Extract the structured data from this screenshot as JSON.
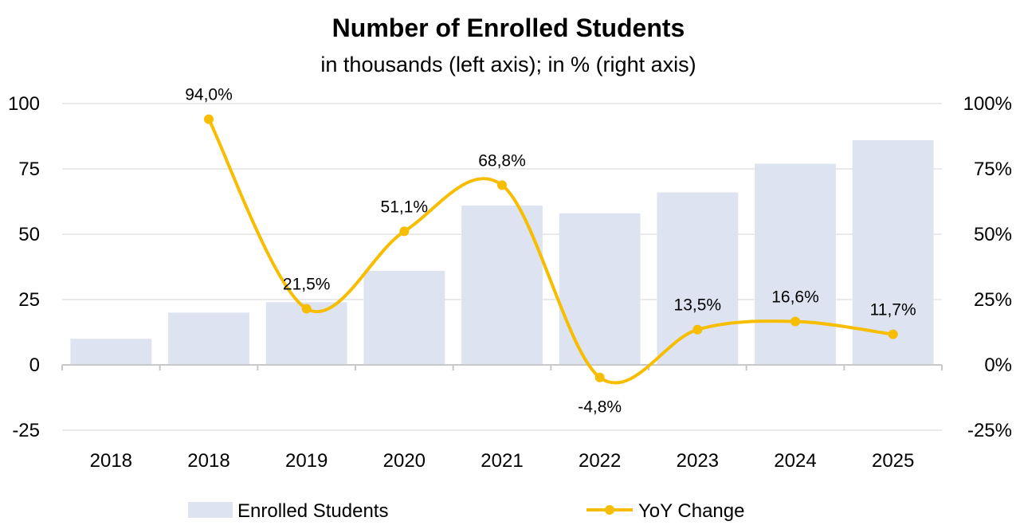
{
  "chart_data": {
    "type": "bar",
    "title": "Number of Enrolled Students",
    "subtitle": "in thousands (left axis); in % (right axis)",
    "categories": [
      "2018",
      "2018",
      "2019",
      "2020",
      "2021",
      "2022",
      "2023",
      "2024",
      "2025"
    ],
    "series": [
      {
        "name": "Enrolled Students",
        "type": "bar",
        "axis": "left",
        "color": "#dde3f1",
        "values": [
          10,
          20,
          24,
          36,
          61,
          58,
          66,
          77,
          86
        ]
      },
      {
        "name": "YoY Change",
        "type": "line",
        "axis": "right",
        "color": "#f7bd00",
        "smooth": true,
        "values": [
          null,
          94.0,
          21.5,
          51.1,
          68.8,
          -4.8,
          13.5,
          16.6,
          11.7
        ],
        "labels": [
          null,
          "94,0%",
          "21,5%",
          "51,1%",
          "68,8%",
          "-4,8%",
          "13,5%",
          "16,6%",
          "11,7%"
        ]
      }
    ],
    "y_left": {
      "ylim": [
        -25,
        100
      ],
      "ticks": [
        100,
        75,
        50,
        25,
        0,
        -25
      ]
    },
    "y_right": {
      "ylim": [
        -25,
        100
      ],
      "ticks": [
        "100%",
        "75%",
        "50%",
        "25%",
        "0%",
        "-25%"
      ]
    },
    "grid": true,
    "legend": "bottom"
  }
}
